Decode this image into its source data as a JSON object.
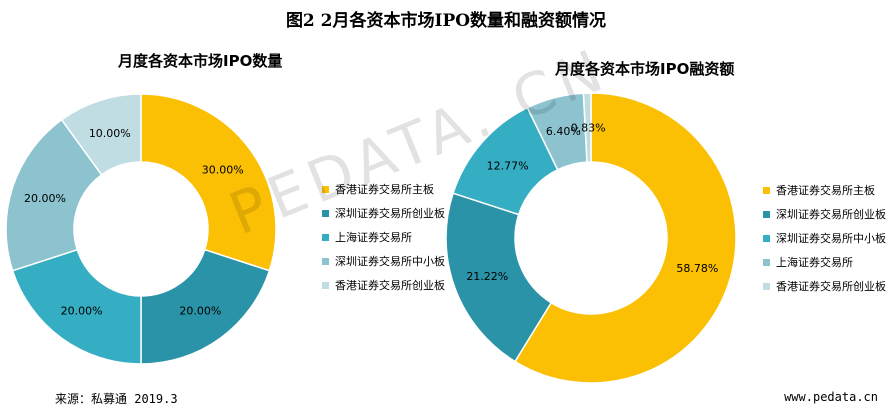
{
  "title": "图2 2月各资本市场IPO数量和融资额情况",
  "chart_data": [
    {
      "type": "pie",
      "title": "月度各资本市场IPO数量",
      "categories": [
        "香港证券交易所主板",
        "深圳证券交易所创业板",
        "上海证券交易所",
        "深圳证券交易所中小板",
        "香港证券交易所创业板"
      ],
      "values": [
        30.0,
        20.0,
        20.0,
        20.0,
        10.0
      ],
      "labels": [
        "30.00%",
        "20.00%",
        "20.00%",
        "20.00%",
        "10.00%"
      ],
      "colors": [
        "#fbbf03",
        "#2b93a8",
        "#35adc2",
        "#8cc3cf",
        "#bfdde3"
      ],
      "legend_position": "right"
    },
    {
      "type": "pie",
      "title": "月度各资本市场IPO融资额",
      "categories": [
        "香港证券交易所主板",
        "深圳证券交易所创业板",
        "深圳证券交易所中小板",
        "上海证券交易所",
        "香港证券交易所创业板"
      ],
      "values": [
        58.78,
        21.22,
        12.77,
        6.4,
        0.83
      ],
      "labels": [
        "58.78%",
        "21.22%",
        "12.77%",
        "6.40%",
        "0.83%"
      ],
      "colors": [
        "#fbbf03",
        "#2b93a8",
        "#35adc2",
        "#8cc3cf",
        "#bfdde3"
      ],
      "legend_position": "right"
    }
  ],
  "watermark": "PEDATA. CN",
  "footer": {
    "source": "来源：私募通  2019.3",
    "url": "www.pedata.cn"
  }
}
